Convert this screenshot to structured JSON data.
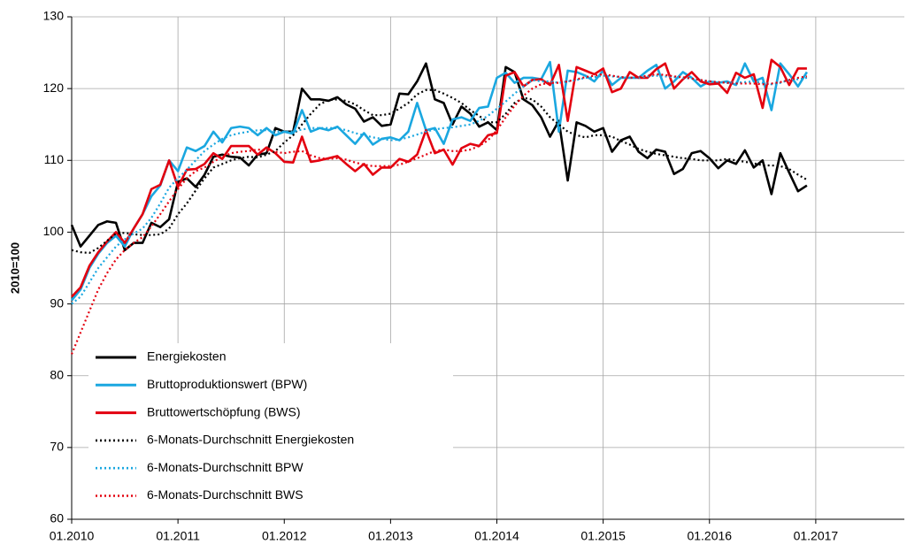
{
  "chart_data": {
    "type": "line",
    "y_label": "2010=100",
    "x": [
      "01.2010",
      "02.2010",
      "03.2010",
      "04.2010",
      "05.2010",
      "06.2010",
      "07.2010",
      "08.2010",
      "09.2010",
      "10.2010",
      "11.2010",
      "12.2010",
      "01.2011",
      "02.2011",
      "03.2011",
      "04.2011",
      "05.2011",
      "06.2011",
      "07.2011",
      "08.2011",
      "09.2011",
      "10.2011",
      "11.2011",
      "12.2011",
      "01.2012",
      "02.2012",
      "03.2012",
      "04.2012",
      "05.2012",
      "06.2012",
      "07.2012",
      "08.2012",
      "09.2012",
      "10.2012",
      "11.2012",
      "12.2012",
      "01.2013",
      "02.2013",
      "03.2013",
      "04.2013",
      "05.2013",
      "06.2013",
      "07.2013",
      "08.2013",
      "09.2013",
      "10.2013",
      "11.2013",
      "12.2013",
      "01.2014",
      "02.2014",
      "03.2014",
      "04.2014",
      "05.2014",
      "06.2014",
      "07.2014",
      "08.2014",
      "09.2014",
      "10.2014",
      "11.2014",
      "12.2014",
      "01.2015",
      "02.2015",
      "03.2015",
      "04.2015",
      "05.2015",
      "06.2015",
      "07.2015",
      "08.2015",
      "09.2015",
      "10.2015",
      "11.2015",
      "12.2015",
      "01.2016",
      "02.2016",
      "03.2016",
      "04.2016",
      "05.2016",
      "06.2016",
      "07.2016",
      "08.2016",
      "09.2016",
      "10.2016",
      "11.2016",
      "12.2016"
    ],
    "xlim": [
      "01.2010",
      "11.2017"
    ],
    "xticks": [
      "01.2010",
      "01.2011",
      "01.2012",
      "01.2013",
      "01.2014",
      "01.2015",
      "01.2016",
      "01.2017"
    ],
    "ylim": [
      60,
      130
    ],
    "yticks": [
      60,
      70,
      80,
      90,
      100,
      110,
      120,
      130
    ],
    "grid": true,
    "legend": "lower left",
    "series": [
      {
        "name": "Energiekosten",
        "color": "#000000",
        "linestyle": "solid",
        "values": [
          101,
          98,
          99.5,
          101,
          101.5,
          101.3,
          97.5,
          98.5,
          98.5,
          101.3,
          100.7,
          101.8,
          107,
          107.5,
          106.3,
          108,
          110.5,
          110.8,
          110.5,
          110.4,
          109.3,
          110.8,
          111,
          114.5,
          114,
          114,
          120,
          118.5,
          118.5,
          118.3,
          118.8,
          117.8,
          117.2,
          115.4,
          116,
          114.8,
          115,
          119.3,
          119.2,
          121,
          123.5,
          118.5,
          118,
          115,
          117.5,
          116.5,
          114.7,
          115.3,
          114.2,
          123,
          122.3,
          118.5,
          117.7,
          116,
          113.3,
          115.5,
          107.2,
          115.3,
          114.8,
          114,
          114.5,
          111.2,
          112.8,
          113.3,
          111.2,
          110.3,
          111.5,
          111.2,
          108.1,
          108.8,
          111,
          111.3,
          110.3,
          108.9,
          110,
          109.5,
          111.4,
          109,
          110,
          105.3,
          111,
          108.3,
          105.7,
          106.5
        ]
      },
      {
        "name": "Bruttoproduktionswert (BPW)",
        "color": "#1aa7e0",
        "linestyle": "solid",
        "values": [
          90.5,
          92,
          95,
          97,
          98.5,
          99.5,
          98,
          100.5,
          102.5,
          105,
          106.5,
          110,
          108.5,
          111.8,
          111.3,
          112,
          114,
          112.5,
          114.5,
          114.7,
          114.5,
          113.5,
          114.5,
          113.5,
          114,
          113.7,
          117,
          114,
          114.5,
          114.2,
          114.7,
          113.5,
          112.3,
          113.8,
          112.2,
          113,
          113.2,
          112.8,
          114,
          118,
          114.2,
          114.5,
          112.3,
          115.7,
          116,
          115.5,
          117.3,
          117.5,
          121.5,
          122.2,
          120.8,
          121.5,
          121.5,
          121.3,
          123.7,
          114,
          122.5,
          122.3,
          121.8,
          121,
          122.5,
          120.5,
          121.5,
          121.5,
          121.5,
          122.5,
          123.3,
          120,
          121,
          122.3,
          121.5,
          120.3,
          121,
          120.8,
          121,
          120.5,
          123.5,
          121,
          121.5,
          117,
          123.5,
          122,
          120.3,
          122.3
        ]
      },
      {
        "name": "Bruttowertschöpfung (BWS)",
        "color": "#e3000f",
        "linestyle": "solid",
        "values": [
          91,
          92.3,
          95.3,
          97.2,
          98.7,
          100,
          98.5,
          100.5,
          102.5,
          106,
          106.6,
          110,
          106.3,
          108.7,
          108.8,
          109.5,
          111,
          110.2,
          112,
          112,
          112,
          110.8,
          111.8,
          111,
          109.8,
          109.7,
          113.3,
          109.8,
          110,
          110.3,
          110.6,
          109.5,
          108.5,
          109.5,
          108,
          109,
          109,
          110.2,
          109.8,
          110.8,
          114.2,
          111,
          111.5,
          109.4,
          111.7,
          112.3,
          112,
          113.5,
          113.8,
          121.8,
          122.3,
          120.3,
          121.2,
          121.3,
          120.5,
          123.3,
          115.5,
          123,
          122.5,
          122,
          122.8,
          119.5,
          120,
          122.3,
          121.5,
          121.5,
          122.7,
          123.5,
          120,
          121.3,
          122.3,
          121,
          120.6,
          120.7,
          119.4,
          122.2,
          121.5,
          122,
          117.3,
          124,
          123,
          120.5,
          122.8,
          122.8
        ]
      },
      {
        "name": "6-Monats-Durchschnitt Energiekosten",
        "color": "#000000",
        "linestyle": "dotted",
        "values": [
          97.5,
          97.2,
          97.1,
          97.8,
          98.8,
          99.8,
          99.9,
          99.7,
          99.6,
          99.6,
          99.7,
          100.5,
          102.5,
          104,
          105.8,
          107.5,
          109,
          109.5,
          110,
          110.3,
          110.5,
          110.4,
          110.8,
          111.3,
          112.5,
          113.5,
          115,
          116.5,
          117.8,
          118.4,
          118.5,
          118.3,
          117.8,
          117,
          116.3,
          116.3,
          116.5,
          117.2,
          118,
          119.2,
          119.8,
          119.8,
          119.3,
          118.7,
          118,
          117,
          116.2,
          115.3,
          115.3,
          116.5,
          118,
          118.7,
          118.5,
          117.5,
          116,
          115,
          114,
          113.5,
          113.2,
          113.5,
          113.5,
          113.3,
          112.7,
          112.2,
          111.6,
          111.2,
          110.9,
          110.7,
          110.5,
          110.3,
          110.2,
          110,
          110,
          110,
          110.2,
          110,
          109.8,
          109.6,
          109.3,
          109.3,
          109.2,
          108.8,
          108,
          107.3
        ]
      },
      {
        "name": "6-Monats-Durchschnitt BPW",
        "color": "#1aa7e0",
        "linestyle": "dotted",
        "values": [
          90,
          91,
          93,
          95,
          96.5,
          98,
          99,
          99.8,
          100.5,
          102,
          104,
          106.2,
          107.5,
          108.7,
          110,
          111.3,
          112.2,
          113,
          113.5,
          113.8,
          114,
          114.2,
          114.2,
          114,
          114,
          114,
          114.3,
          114.5,
          114.5,
          114.5,
          114.5,
          114.2,
          113.8,
          113.5,
          113.2,
          113,
          112.8,
          112.9,
          113.2,
          113.6,
          114,
          114.3,
          114.5,
          114.6,
          114.8,
          115,
          115.5,
          116.2,
          117.2,
          118.2,
          119.3,
          120.3,
          121.2,
          121,
          121,
          120.8,
          121,
          121.2,
          121.5,
          121.6,
          121.8,
          121.7,
          121.6,
          121.5,
          121.5,
          121.7,
          121.8,
          121.7,
          121.6,
          121.5,
          121.4,
          121.2,
          121,
          120.9,
          120.8,
          120.8,
          120.9,
          121,
          120.8,
          120.6,
          120.8,
          121.2,
          121.3,
          121.5
        ]
      },
      {
        "name": "6-Monats-Durchschnitt BWS",
        "color": "#e3000f",
        "linestyle": "dotted",
        "values": [
          83,
          86,
          89,
          92,
          94.3,
          96.2,
          97.5,
          98.5,
          99.3,
          100.8,
          102.5,
          104.3,
          106,
          107.5,
          108.5,
          109,
          109.8,
          110.5,
          111,
          111.2,
          111.3,
          111.5,
          111.4,
          111.2,
          111,
          111.2,
          111.3,
          110.7,
          110.3,
          110.2,
          110.3,
          110.1,
          109.7,
          109.4,
          109.2,
          109.2,
          109.2,
          109.4,
          109.8,
          110.3,
          110.8,
          111.3,
          111.5,
          111.3,
          111.3,
          111.5,
          112,
          112.8,
          114.2,
          116,
          117.6,
          119,
          120,
          120.6,
          120.8,
          120.8,
          121,
          121.3,
          121.6,
          121.8,
          122,
          121.8,
          121.6,
          121.5,
          121.6,
          121.8,
          122,
          121.9,
          121.7,
          121.6,
          121.4,
          121.2,
          121,
          120.9,
          120.8,
          120.7,
          120.7,
          120.7,
          120.6,
          120.7,
          120.9,
          121.2,
          121.5,
          121.7
        ]
      }
    ]
  }
}
